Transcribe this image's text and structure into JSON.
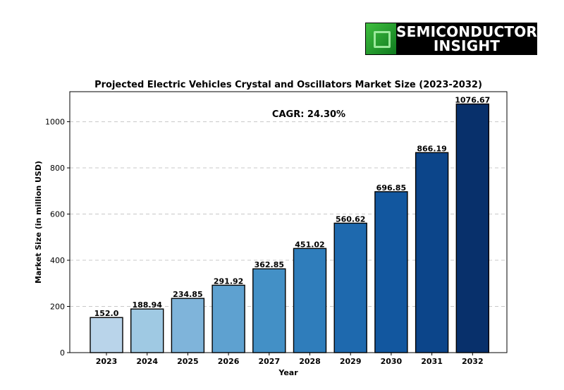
{
  "logo": {
    "line1": "SEMICONDUCTOR",
    "line2": "INSIGHT"
  },
  "chart_data": {
    "type": "bar",
    "title": "Projected Electric Vehicles Crystal and Oscillators Market Size (2023-2032)",
    "xlabel": "Year",
    "ylabel": "Market Size (in million USD)",
    "annotation": "CAGR: 24.30%",
    "categories": [
      "2023",
      "2024",
      "2025",
      "2026",
      "2027",
      "2028",
      "2029",
      "2030",
      "2031",
      "2032"
    ],
    "values": [
      152.0,
      188.94,
      234.85,
      291.92,
      362.85,
      451.02,
      560.62,
      696.85,
      866.19,
      1076.67
    ],
    "value_labels": [
      "152.0",
      "188.94",
      "234.85",
      "291.92",
      "362.85",
      "451.02",
      "560.62",
      "696.85",
      "866.19",
      "1076.67"
    ],
    "yticks": [
      0,
      200,
      400,
      600,
      800,
      1000
    ],
    "ylim": [
      0,
      1130
    ],
    "grid": "horizontal-dashed",
    "colors": [
      "#b9d4ea",
      "#9fc9e3",
      "#7fb4da",
      "#5ea1d0",
      "#4390c6",
      "#2f7dbb",
      "#1e69ae",
      "#12579f",
      "#0c458a",
      "#08306b"
    ]
  }
}
